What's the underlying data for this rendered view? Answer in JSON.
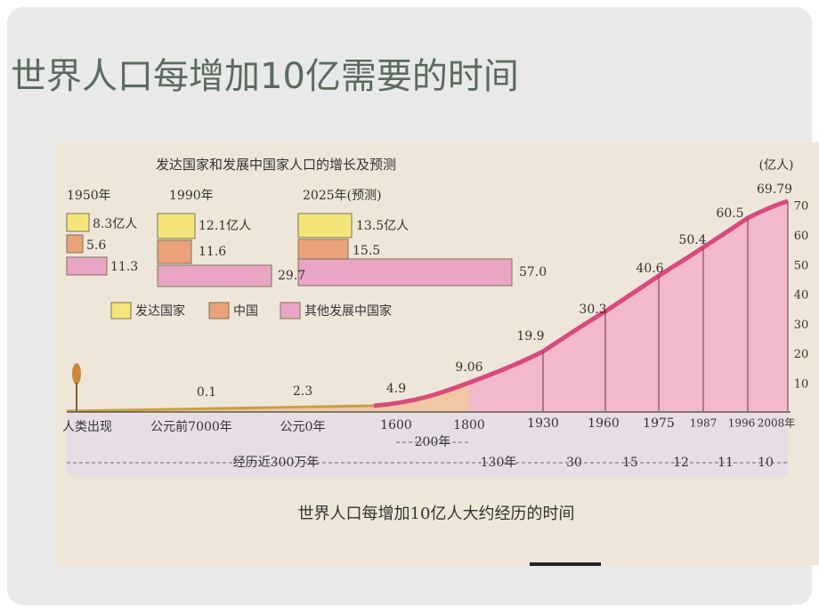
{
  "slide": {
    "title": "世界人口每增加10亿需要的时间",
    "figure": {
      "inset_title": "发达国家和发展中国家人口的增长及预测",
      "unit": "(亿人)",
      "groups": [
        {
          "year": "1950年",
          "values": [
            "8.3亿人",
            "5.6",
            "11.3"
          ]
        },
        {
          "year": "1990年",
          "values": [
            "12.1亿人",
            "11.6",
            "29.7"
          ]
        },
        {
          "year": "2025年(预测)",
          "values": [
            "13.5亿人",
            "15.5",
            "57.0"
          ]
        }
      ],
      "legend": [
        "发达国家",
        "中国",
        "其他发展中国家"
      ],
      "x_labels": [
        "人类出现",
        "公元前7000年",
        "公元0年",
        "1600",
        "1800",
        "1930",
        "1960",
        "1975",
        "1987",
        "1996",
        "2008年"
      ],
      "values": [
        "0.1",
        "2.3",
        "4.9",
        "9.06",
        "19.9",
        "30.3",
        "40.6",
        "50.4",
        "60.5",
        "69.79"
      ],
      "axis_ticks": [
        "10",
        "20",
        "30",
        "40",
        "50",
        "60",
        "70"
      ],
      "intervals": [
        "200年",
        "经历近300万年",
        "130年",
        "30",
        "15",
        "12",
        "11",
        "10"
      ],
      "caption": "世界人口每增加10亿人大约经历的时间"
    }
  }
}
